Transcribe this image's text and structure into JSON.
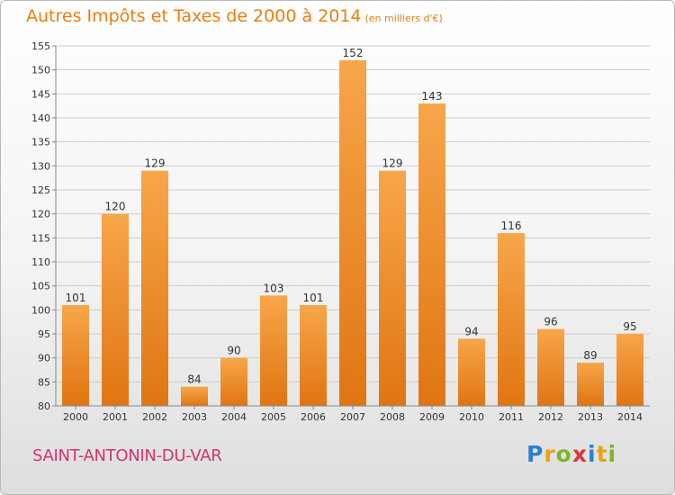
{
  "header": {
    "title": "Autres Impôts et Taxes de 2000 à 2014",
    "subtitle": "(en milliers d'€)"
  },
  "footer": {
    "city": "SAINT-ANTONIN-DU-VAR",
    "logo": [
      "P",
      "r",
      "o",
      "x",
      "i",
      "t",
      "i"
    ],
    "logo_colors": [
      "#2a7fd4",
      "#e8a214",
      "#7bb82b",
      "#d83a3a",
      "#2a7fd4",
      "#e8a214",
      "#7bb82b"
    ]
  },
  "colors": {
    "bar_light": "#f7a64a",
    "bar_dark": "#e07512",
    "grid": "#cccccc",
    "axis_text": "#333333"
  },
  "chart_data": {
    "type": "bar",
    "categories": [
      "2000",
      "2001",
      "2002",
      "2003",
      "2004",
      "2005",
      "2006",
      "2007",
      "2008",
      "2009",
      "2010",
      "2011",
      "2012",
      "2013",
      "2014"
    ],
    "values": [
      101,
      120,
      129,
      84,
      90,
      103,
      101,
      152,
      129,
      143,
      94,
      116,
      96,
      89,
      95
    ],
    "ylim": [
      80,
      155
    ],
    "yticks": [
      80,
      85,
      90,
      95,
      100,
      105,
      110,
      115,
      120,
      125,
      130,
      135,
      140,
      145,
      150,
      155
    ],
    "grid": true
  }
}
